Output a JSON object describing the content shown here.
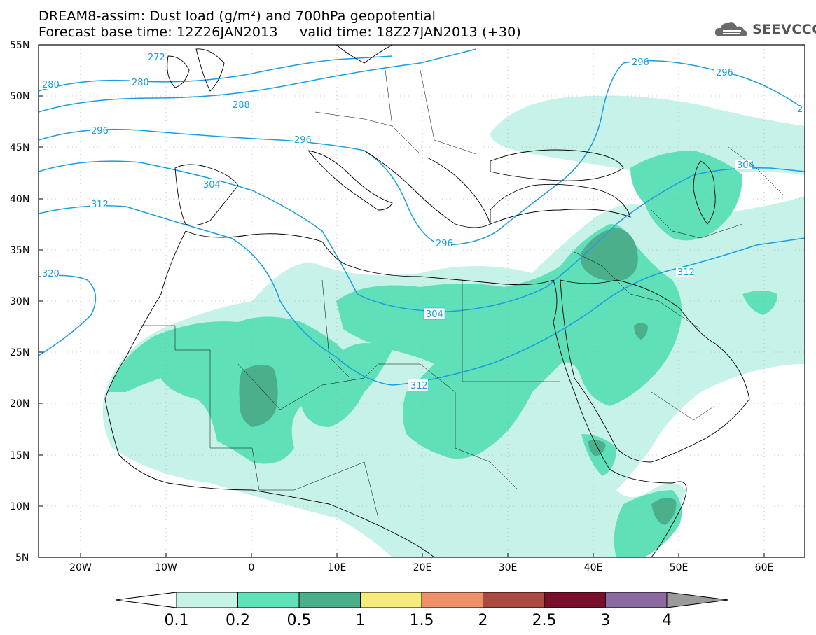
{
  "header": {
    "title_line1": "DREAM8-assim: Dust load (g/m²) and 700hPa geopotential",
    "title_line2": "Forecast base time: 12Z26JAN2013     valid time: 18Z27JAN2013 (+30)",
    "logo_text": "SEEVCCC"
  },
  "map": {
    "lat_labels": [
      "55N",
      "50N",
      "45N",
      "40N",
      "35N",
      "30N",
      "25N",
      "20N",
      "15N",
      "10N",
      "5N"
    ],
    "lon_labels": [
      "20W",
      "10W",
      "0",
      "10E",
      "20E",
      "30E",
      "40E",
      "50E",
      "60E"
    ],
    "contour_labels": [
      "272",
      "280",
      "280",
      "288",
      "296",
      "296",
      "296",
      "296",
      "296",
      "304",
      "304",
      "304",
      "312",
      "312",
      "312",
      "320",
      "2"
    ],
    "colors": {
      "dust_0_1": "#c6f2e9",
      "dust_0_2": "#5fe0b8",
      "dust_0_5": "#4caf8c",
      "dust_1": "#f5ea7a",
      "dust_high": "#6a6a5a",
      "geopotential": "#1a9de0",
      "borders": "#000000"
    }
  },
  "colorbar": {
    "labels": [
      "0.1",
      "0.2",
      "0.5",
      "1",
      "1.5",
      "2",
      "2.5",
      "3",
      "4"
    ],
    "colors": [
      "#c6f2e9",
      "#5fe0b8",
      "#4caf8c",
      "#f5ea7a",
      "#ee916a",
      "#a94a40",
      "#7a0f2c",
      "#8a6aa0",
      "#9a9a9a"
    ]
  }
}
